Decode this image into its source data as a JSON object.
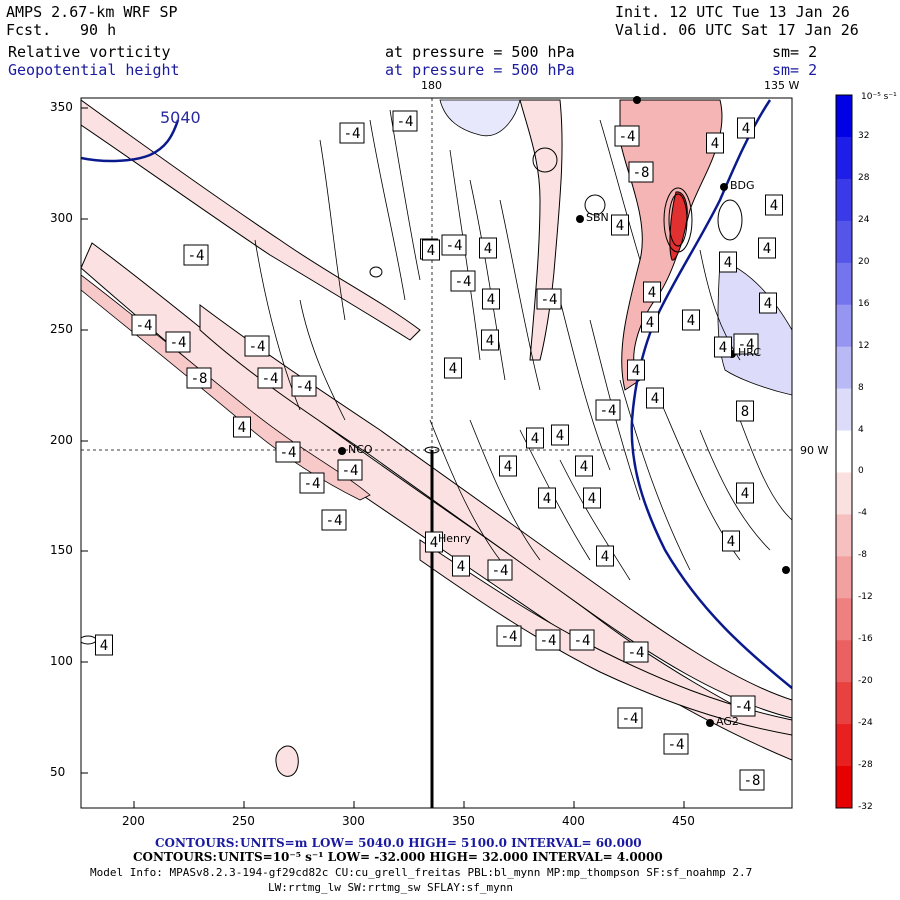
{
  "header": {
    "model": "AMPS 2.67-km WRF SP",
    "forecast_label": "Fcst.",
    "forecast_value": "90 h",
    "init": "Init. 12 UTC Tue 13 Jan 26",
    "valid": "Valid. 06 UTC Sat 17 Jan 26",
    "field1_name": "Relative vorticity",
    "field1_level": "at pressure =  500 hPa",
    "field1_smooth": "sm= 2",
    "field2_name": "Geopotential height",
    "field2_level": "at pressure =  500 hPa",
    "field2_smooth": "sm= 2"
  },
  "map": {
    "lon_top_180": "180",
    "lon_top_135w": "135 W",
    "lat_right_90w": "90 W",
    "height_contour_label": "5040",
    "x_ticks": [
      "200",
      "250",
      "300",
      "350",
      "400",
      "450"
    ],
    "y_ticks": [
      "350",
      "300",
      "250",
      "200",
      "150",
      "100",
      "50"
    ],
    "stations": [
      {
        "id": "NCO",
        "label": "NCO"
      },
      {
        "id": "Henry",
        "label": "Henry"
      },
      {
        "id": "AG2",
        "label": "AG2"
      },
      {
        "id": "BDG",
        "label": "BDG"
      },
      {
        "id": "HRC",
        "label": "HRC"
      },
      {
        "id": "SBN",
        "label": "SBN"
      }
    ],
    "vorticity_labels": [
      {
        "v": "-4"
      },
      {
        "v": "-4"
      },
      {
        "v": "4"
      },
      {
        "v": "-4"
      },
      {
        "v": "4"
      },
      {
        "v": "-4"
      },
      {
        "v": "-8"
      },
      {
        "v": "4"
      },
      {
        "v": "-4"
      },
      {
        "v": "4"
      },
      {
        "v": "4"
      },
      {
        "v": "4"
      },
      {
        "v": "4"
      },
      {
        "v": "4"
      },
      {
        "v": "4"
      },
      {
        "v": "-4"
      },
      {
        "v": "-4"
      },
      {
        "v": "-4"
      },
      {
        "v": "-4"
      },
      {
        "v": "4"
      },
      {
        "v": "4"
      },
      {
        "v": "4"
      },
      {
        "v": "4"
      },
      {
        "v": "4"
      },
      {
        "v": "-4"
      },
      {
        "v": "-8"
      },
      {
        "v": "-4"
      },
      {
        "v": "4"
      },
      {
        "v": "4"
      },
      {
        "v": "4"
      },
      {
        "v": "4"
      },
      {
        "v": "-4"
      },
      {
        "v": "4"
      },
      {
        "v": "-4"
      },
      {
        "v": "4"
      },
      {
        "v": "-4"
      },
      {
        "v": "-4"
      },
      {
        "v": "4"
      },
      {
        "v": "4"
      },
      {
        "v": "4"
      },
      {
        "v": "-4"
      },
      {
        "v": "-4"
      },
      {
        "v": "4"
      },
      {
        "v": "4"
      },
      {
        "v": "-4"
      },
      {
        "v": "-4"
      },
      {
        "v": "-4"
      },
      {
        "v": "-4"
      },
      {
        "v": "4"
      },
      {
        "v": "-4"
      },
      {
        "v": "-4"
      },
      {
        "v": "-4"
      },
      {
        "v": "-4"
      },
      {
        "v": "-4"
      },
      {
        "v": "-8"
      },
      {
        "v": "8"
      },
      {
        "v": "4"
      },
      {
        "v": "4"
      },
      {
        "v": "4"
      },
      {
        "v": "4"
      },
      {
        "v": "4"
      },
      {
        "v": "4"
      }
    ]
  },
  "colorbar": {
    "units": "10⁻⁵ s⁻¹",
    "labels": [
      "32",
      "28",
      "24",
      "20",
      "16",
      "12",
      "8",
      "4",
      "0",
      "-4",
      "-8",
      "-12",
      "-16",
      "-20",
      "-24",
      "-28",
      "-32"
    ],
    "colors": [
      "#0000e6",
      "#1e1ee8",
      "#3a3ae8",
      "#5555ea",
      "#7474ee",
      "#9696f2",
      "#b9b9f6",
      "#dcdcfa",
      "#ffffff",
      "#fbe0e0",
      "#f7c0c0",
      "#f3a0a0",
      "#ef8080",
      "#eb6060",
      "#e94040",
      "#e82020",
      "#e60000"
    ]
  },
  "footer": {
    "line1_label": "CONTOURS:",
    "line1": "UNITS=m  LOW=  5040.0        HIGH=  5100.0        INTERVAL=   60.000",
    "line2_label": "CONTOURS:",
    "line2": "UNITS=10⁻⁵ s⁻¹  LOW=  -32.000      HIGH=  32.000      INTERVAL=   4.0000",
    "model_info": "Model Info: MPASv8.2.3-194-gf29cd82c CU:cu_grell_freitas PBL:bl_mynn MP:mp_thompson SF:sf_noahmp 2.7",
    "model_info2": "LW:rrtmg_lw SW:rrtmg_sw SFLAY:sf_mynn"
  }
}
